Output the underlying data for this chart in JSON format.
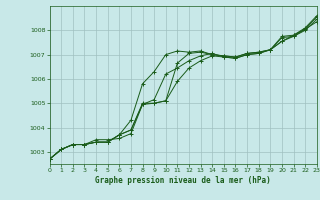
{
  "title": "Graphe pression niveau de la mer (hPa)",
  "bg_color": "#c8e8e8",
  "plot_bg_color": "#c8e8e8",
  "grid_color": "#a0c0c0",
  "line_color": "#1a5c1a",
  "xlim": [
    0,
    23
  ],
  "ylim": [
    1002.5,
    1009.0
  ],
  "xticks": [
    0,
    1,
    2,
    3,
    4,
    5,
    6,
    7,
    8,
    9,
    10,
    11,
    12,
    13,
    14,
    15,
    16,
    17,
    18,
    19,
    20,
    21,
    22,
    23
  ],
  "yticks": [
    1003,
    1004,
    1005,
    1006,
    1007,
    1008
  ],
  "series": [
    [
      1002.7,
      1003.1,
      1003.3,
      1003.3,
      1003.4,
      1003.4,
      1003.7,
      1004.3,
      1005.8,
      1006.3,
      1007.0,
      1007.15,
      1007.1,
      1007.15,
      1007.0,
      1006.95,
      1006.9,
      1007.05,
      1007.1,
      1007.2,
      1007.75,
      1007.8,
      1008.1,
      1008.6
    ],
    [
      1002.7,
      1003.1,
      1003.3,
      1003.3,
      1003.4,
      1003.4,
      1003.7,
      1003.9,
      1005.0,
      1005.0,
      1005.1,
      1006.65,
      1007.05,
      1007.1,
      1007.0,
      1006.95,
      1006.9,
      1007.05,
      1007.1,
      1007.2,
      1007.55,
      1007.8,
      1008.05,
      1008.35
    ],
    [
      1002.7,
      1003.1,
      1003.3,
      1003.3,
      1003.4,
      1003.4,
      1003.7,
      1003.9,
      1004.95,
      1005.0,
      1005.1,
      1005.9,
      1006.45,
      1006.75,
      1006.95,
      1006.9,
      1006.85,
      1007.0,
      1007.05,
      1007.2,
      1007.7,
      1007.75,
      1008.05,
      1008.55
    ],
    [
      1002.7,
      1003.1,
      1003.3,
      1003.3,
      1003.5,
      1003.5,
      1003.55,
      1003.75,
      1004.95,
      1005.15,
      1006.2,
      1006.45,
      1006.75,
      1006.95,
      1007.05,
      1006.9,
      1006.85,
      1007.0,
      1007.05,
      1007.2,
      1007.55,
      1007.75,
      1008.0,
      1008.45
    ]
  ]
}
